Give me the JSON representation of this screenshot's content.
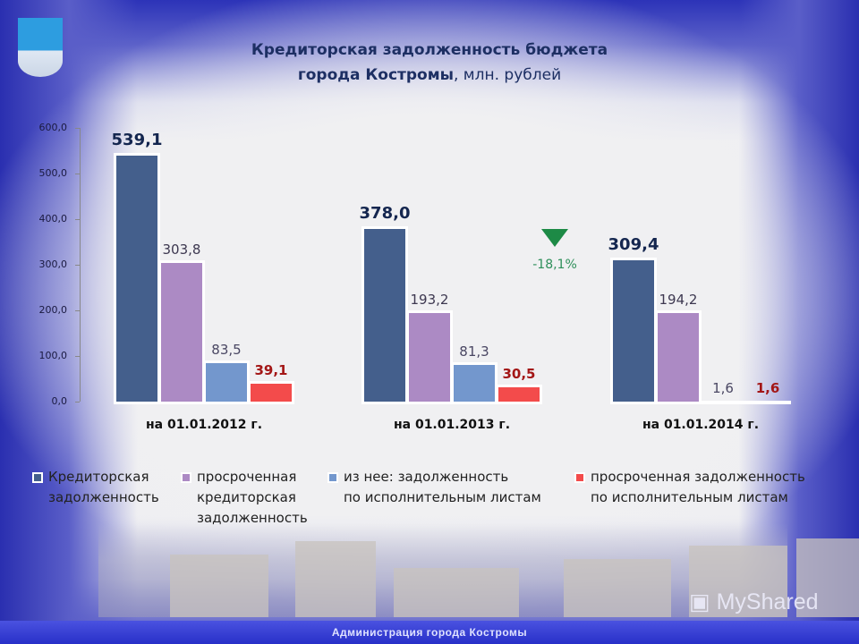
{
  "title": {
    "line1": "Кредиторская задолженность бюджета",
    "line2_bold": "города Костромы",
    "line2_rest": ", млн. рублей"
  },
  "footer": {
    "text": "Администрация города Костромы"
  },
  "watermark": {
    "text": "MyShared"
  },
  "delta": {
    "text": "-18,1%",
    "icon": "triangle-down-icon",
    "color": "#1d8a46"
  },
  "colors": {
    "series1": "#445f8c",
    "series2": "#ac8ac4",
    "series3": "#7397cd",
    "series4": "#f34b4b"
  },
  "chart_data": {
    "type": "bar",
    "title": "Кредиторская задолженность бюджета города Костромы, млн. рублей",
    "xlabel": "",
    "ylabel": "",
    "ylim": [
      0,
      600
    ],
    "yticks": [
      "0,0",
      "100,0",
      "200,0",
      "300,0",
      "400,0",
      "500,0",
      "600,0"
    ],
    "categories": [
      "на 01.01.2012 г.",
      "на 01.01.2013 г.",
      "на 01.01.2014 г."
    ],
    "series": [
      {
        "name": "Кредиторская задолженность",
        "values": [
          539.1,
          378.0,
          309.4
        ],
        "labels": [
          "539,1",
          "378,0",
          "309,4"
        ]
      },
      {
        "name": "просроченная кредиторская задолженность",
        "values": [
          303.8,
          193.2,
          194.2
        ],
        "labels": [
          "303,8",
          "193,2",
          "194,2"
        ]
      },
      {
        "name": "из нее: задолженность по исполнительным листам",
        "values": [
          83.5,
          81.3,
          1.6
        ],
        "labels": [
          "83,5",
          "81,3",
          "1,6"
        ]
      },
      {
        "name": "просроченная задолженность по исполнительным листам",
        "values": [
          39.1,
          30.5,
          1.6
        ],
        "labels": [
          "39,1",
          "30,5",
          "1,6"
        ]
      }
    ],
    "annotations": [
      "-18,1%"
    ],
    "grid": false,
    "legend_position": "bottom"
  },
  "legend": [
    {
      "text": "Кредиторская\nзадолженность"
    },
    {
      "text": "просроченная\nкредиторская\nзадолженность"
    },
    {
      "text": "из нее: задолженность\nпо исполнительным листам"
    },
    {
      "text": "просроченная задолженность\nпо исполнительным листам"
    }
  ]
}
